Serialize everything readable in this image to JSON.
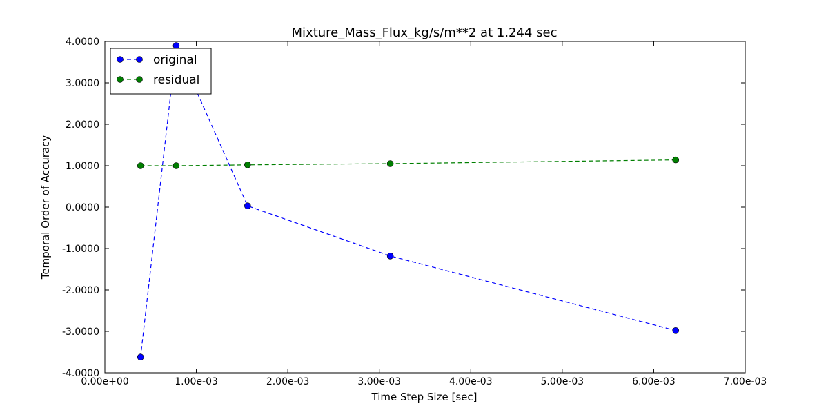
{
  "chart_data": {
    "type": "line",
    "title": "Mixture_Mass_Flux_kg/s/m**2 at 1.244 sec",
    "xlabel": "Time Step Size [sec]",
    "ylabel": "Temporal Order of Accuracy",
    "xlim": [
      0,
      0.007
    ],
    "ylim": [
      -4,
      4
    ],
    "x_ticks": [
      0,
      0.001,
      0.002,
      0.003,
      0.004,
      0.005,
      0.006,
      0.007
    ],
    "x_tick_labels": [
      "0.00e+00",
      "1.00e-03",
      "2.00e-03",
      "3.00e-03",
      "4.00e-03",
      "5.00e-03",
      "6.00e-03",
      "7.00e-03"
    ],
    "y_ticks": [
      4,
      3,
      2,
      1,
      0,
      -1,
      -2,
      -3,
      -4
    ],
    "y_tick_labels": [
      "4.0000",
      "3.0000",
      "2.0000",
      "1.0000",
      "0.0000",
      "-1.0000",
      "-2.0000",
      "-3.0000",
      "-4.0000"
    ],
    "grid": false,
    "legend_position": "top-left",
    "x": [
      0.00039,
      0.00078,
      0.00156,
      0.00312,
      0.00624
    ],
    "series": [
      {
        "name": "original",
        "color": "#0000ff",
        "linestyle": "dashed",
        "marker": "circle",
        "values": [
          -3.62,
          3.9,
          0.03,
          -1.18,
          -2.98
        ]
      },
      {
        "name": "residual",
        "color": "#007f00",
        "linestyle": "dashed",
        "marker": "circle",
        "values": [
          1.0,
          1.0,
          1.02,
          1.05,
          1.14
        ]
      }
    ]
  }
}
